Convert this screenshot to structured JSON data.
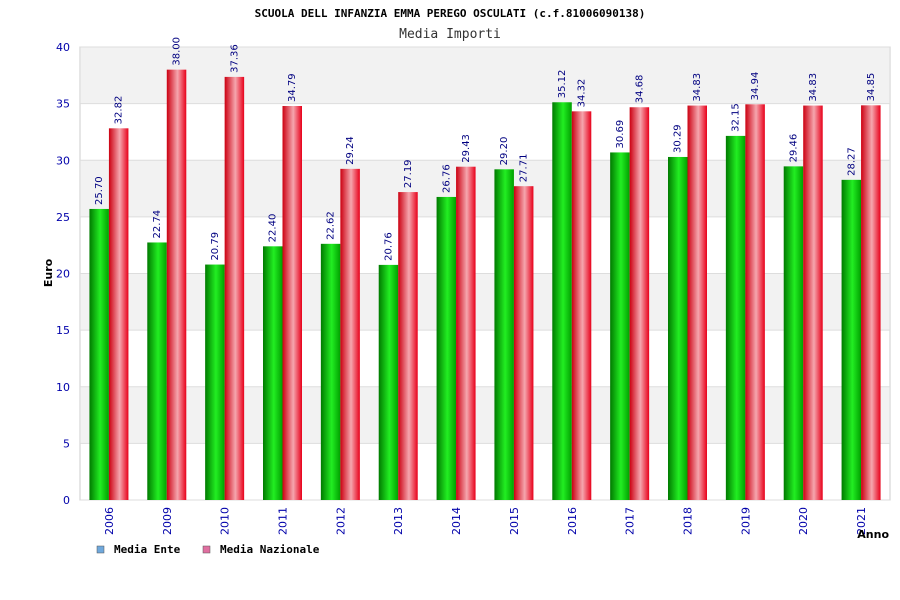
{
  "chart_data": {
    "type": "bar",
    "title": "SCUOLA DELL INFANZIA EMMA PEREGO OSCULATI (c.f.81006090138)",
    "subtitle": "Media Importi",
    "xlabel": "Anno",
    "ylabel": "Euro",
    "ylim": [
      0,
      40
    ],
    "yticks": [
      0,
      5,
      10,
      15,
      20,
      25,
      30,
      35,
      40
    ],
    "grid": true,
    "legend_position": "bottom-left",
    "categories": [
      "2006",
      "2009",
      "2010",
      "2011",
      "2012",
      "2013",
      "2014",
      "2015",
      "2016",
      "2017",
      "2018",
      "2019",
      "2020",
      "2021"
    ],
    "series": [
      {
        "name": "Media Ente",
        "legend_color": "#6fa8dc",
        "color": "#00bb00",
        "values": [
          25.7,
          22.74,
          20.79,
          22.4,
          22.62,
          20.76,
          26.76,
          29.2,
          35.12,
          30.69,
          30.29,
          32.15,
          29.46,
          28.27
        ],
        "labels": [
          "25.70",
          "22.74",
          "20.79",
          "22.40",
          "22.62",
          "20.76",
          "26.76",
          "29.20",
          "35.12",
          "30.69",
          "30.29",
          "32.15",
          "29.46",
          "28.27"
        ]
      },
      {
        "name": "Media Nazionale",
        "legend_color": "#e06fa0",
        "color": "#ee1122",
        "values": [
          32.82,
          38.0,
          37.36,
          34.79,
          29.24,
          27.19,
          29.43,
          27.71,
          34.32,
          34.68,
          34.83,
          34.94,
          34.83,
          34.85
        ],
        "labels": [
          "32.82",
          "38.00",
          "37.36",
          "34.79",
          "29.24",
          "27.19",
          "29.43",
          "27.71",
          "34.32",
          "34.68",
          "34.83",
          "34.94",
          "34.83",
          "34.85"
        ]
      }
    ]
  }
}
